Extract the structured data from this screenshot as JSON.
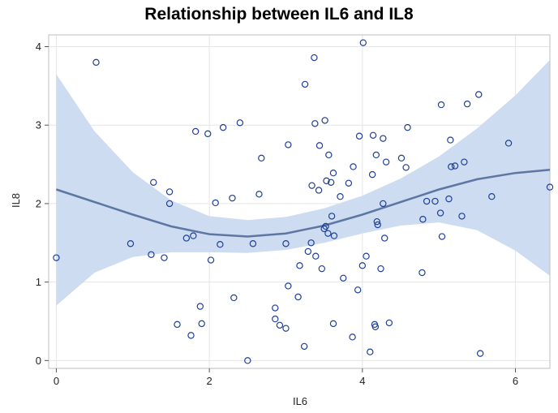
{
  "chart_data": {
    "type": "scatter",
    "title": "Relationship between IL6 and IL8",
    "xlabel": "IL6",
    "ylabel": "IL8",
    "xlim": [
      -0.1,
      6.45
    ],
    "ylim": [
      -0.1,
      4.15
    ],
    "x_ticks": [
      0,
      2,
      4,
      6
    ],
    "y_ticks": [
      0,
      1,
      2,
      3,
      4
    ],
    "grid": true,
    "legend": "none",
    "colors": {
      "points": "#1f3f99",
      "fit_line": "#5e76a3",
      "band": "#cddcf0",
      "grid": "#e6e6e6",
      "frame": "#bfbfbf"
    },
    "points": [
      {
        "x": 0.0,
        "y": 1.31
      },
      {
        "x": 0.52,
        "y": 3.8
      },
      {
        "x": 0.97,
        "y": 1.49
      },
      {
        "x": 1.24,
        "y": 1.35
      },
      {
        "x": 1.27,
        "y": 2.27
      },
      {
        "x": 1.41,
        "y": 1.31
      },
      {
        "x": 1.48,
        "y": 2.15
      },
      {
        "x": 1.48,
        "y": 2.0
      },
      {
        "x": 1.58,
        "y": 0.46
      },
      {
        "x": 1.7,
        "y": 1.56
      },
      {
        "x": 1.76,
        "y": 0.32
      },
      {
        "x": 1.79,
        "y": 1.59
      },
      {
        "x": 1.82,
        "y": 2.92
      },
      {
        "x": 1.88,
        "y": 0.69
      },
      {
        "x": 1.9,
        "y": 0.47
      },
      {
        "x": 1.98,
        "y": 2.89
      },
      {
        "x": 2.02,
        "y": 1.28
      },
      {
        "x": 2.08,
        "y": 2.01
      },
      {
        "x": 2.14,
        "y": 1.48
      },
      {
        "x": 2.18,
        "y": 2.97
      },
      {
        "x": 2.3,
        "y": 2.07
      },
      {
        "x": 2.32,
        "y": 0.8
      },
      {
        "x": 2.4,
        "y": 3.03
      },
      {
        "x": 2.5,
        "y": 0.0
      },
      {
        "x": 2.57,
        "y": 1.49
      },
      {
        "x": 2.65,
        "y": 2.12
      },
      {
        "x": 2.68,
        "y": 2.58
      },
      {
        "x": 2.86,
        "y": 0.53
      },
      {
        "x": 2.86,
        "y": 0.67
      },
      {
        "x": 2.92,
        "y": 0.45
      },
      {
        "x": 3.0,
        "y": 0.41
      },
      {
        "x": 3.0,
        "y": 1.49
      },
      {
        "x": 3.03,
        "y": 2.75
      },
      {
        "x": 3.03,
        "y": 0.95
      },
      {
        "x": 3.16,
        "y": 0.81
      },
      {
        "x": 3.18,
        "y": 1.21
      },
      {
        "x": 3.24,
        "y": 0.18
      },
      {
        "x": 3.25,
        "y": 3.52
      },
      {
        "x": 3.29,
        "y": 1.39
      },
      {
        "x": 3.33,
        "y": 1.5
      },
      {
        "x": 3.34,
        "y": 2.23
      },
      {
        "x": 3.37,
        "y": 3.86
      },
      {
        "x": 3.38,
        "y": 3.02
      },
      {
        "x": 3.39,
        "y": 1.33
      },
      {
        "x": 3.43,
        "y": 2.17
      },
      {
        "x": 3.44,
        "y": 2.74
      },
      {
        "x": 3.47,
        "y": 1.17
      },
      {
        "x": 3.5,
        "y": 1.68
      },
      {
        "x": 3.51,
        "y": 3.06
      },
      {
        "x": 3.52,
        "y": 1.71
      },
      {
        "x": 3.53,
        "y": 2.29
      },
      {
        "x": 3.55,
        "y": 1.62
      },
      {
        "x": 3.56,
        "y": 2.62
      },
      {
        "x": 3.59,
        "y": 2.27
      },
      {
        "x": 3.6,
        "y": 1.84
      },
      {
        "x": 3.62,
        "y": 0.47
      },
      {
        "x": 3.62,
        "y": 2.39
      },
      {
        "x": 3.63,
        "y": 1.59
      },
      {
        "x": 3.71,
        "y": 2.09
      },
      {
        "x": 3.75,
        "y": 1.05
      },
      {
        "x": 3.82,
        "y": 2.26
      },
      {
        "x": 3.87,
        "y": 0.3
      },
      {
        "x": 3.88,
        "y": 2.47
      },
      {
        "x": 3.94,
        "y": 0.9
      },
      {
        "x": 3.96,
        "y": 2.86
      },
      {
        "x": 4.0,
        "y": 1.21
      },
      {
        "x": 4.01,
        "y": 4.05
      },
      {
        "x": 4.05,
        "y": 1.33
      },
      {
        "x": 4.1,
        "y": 0.11
      },
      {
        "x": 4.13,
        "y": 2.37
      },
      {
        "x": 4.14,
        "y": 2.87
      },
      {
        "x": 4.16,
        "y": 0.46
      },
      {
        "x": 4.17,
        "y": 0.43
      },
      {
        "x": 4.18,
        "y": 2.62
      },
      {
        "x": 4.19,
        "y": 1.77
      },
      {
        "x": 4.2,
        "y": 1.73
      },
      {
        "x": 4.24,
        "y": 1.17
      },
      {
        "x": 4.27,
        "y": 2.0
      },
      {
        "x": 4.27,
        "y": 2.83
      },
      {
        "x": 4.29,
        "y": 1.56
      },
      {
        "x": 4.31,
        "y": 2.53
      },
      {
        "x": 4.35,
        "y": 0.48
      },
      {
        "x": 4.51,
        "y": 2.58
      },
      {
        "x": 4.57,
        "y": 2.46
      },
      {
        "x": 4.59,
        "y": 2.97
      },
      {
        "x": 4.78,
        "y": 1.12
      },
      {
        "x": 4.79,
        "y": 1.8
      },
      {
        "x": 4.84,
        "y": 2.03
      },
      {
        "x": 4.95,
        "y": 2.03
      },
      {
        "x": 5.02,
        "y": 1.88
      },
      {
        "x": 5.03,
        "y": 3.26
      },
      {
        "x": 5.04,
        "y": 1.58
      },
      {
        "x": 5.13,
        "y": 2.06
      },
      {
        "x": 5.15,
        "y": 2.81
      },
      {
        "x": 5.16,
        "y": 2.47
      },
      {
        "x": 5.21,
        "y": 2.48
      },
      {
        "x": 5.3,
        "y": 1.84
      },
      {
        "x": 5.33,
        "y": 2.53
      },
      {
        "x": 5.37,
        "y": 3.27
      },
      {
        "x": 5.52,
        "y": 3.39
      },
      {
        "x": 5.54,
        "y": 0.09
      },
      {
        "x": 5.69,
        "y": 2.09
      },
      {
        "x": 5.91,
        "y": 2.77
      },
      {
        "x": 6.45,
        "y": 2.21
      }
    ],
    "fit_line": [
      {
        "x": 0.0,
        "y": 2.18
      },
      {
        "x": 0.5,
        "y": 2.02
      },
      {
        "x": 1.0,
        "y": 1.86
      },
      {
        "x": 1.5,
        "y": 1.71
      },
      {
        "x": 2.0,
        "y": 1.61
      },
      {
        "x": 2.5,
        "y": 1.58
      },
      {
        "x": 3.0,
        "y": 1.62
      },
      {
        "x": 3.5,
        "y": 1.72
      },
      {
        "x": 4.0,
        "y": 1.86
      },
      {
        "x": 4.5,
        "y": 2.02
      },
      {
        "x": 5.0,
        "y": 2.18
      },
      {
        "x": 5.5,
        "y": 2.31
      },
      {
        "x": 6.0,
        "y": 2.39
      },
      {
        "x": 6.45,
        "y": 2.43
      }
    ],
    "confidence_band": [
      {
        "x": 0.0,
        "lower": 0.7,
        "upper": 3.65
      },
      {
        "x": 0.5,
        "lower": 1.12,
        "upper": 2.92
      },
      {
        "x": 1.0,
        "lower": 1.32,
        "upper": 2.4
      },
      {
        "x": 1.5,
        "lower": 1.38,
        "upper": 2.04
      },
      {
        "x": 2.0,
        "lower": 1.38,
        "upper": 1.84
      },
      {
        "x": 2.5,
        "lower": 1.37,
        "upper": 1.79
      },
      {
        "x": 3.0,
        "lower": 1.41,
        "upper": 1.83
      },
      {
        "x": 3.5,
        "lower": 1.5,
        "upper": 1.94
      },
      {
        "x": 4.0,
        "lower": 1.62,
        "upper": 2.1
      },
      {
        "x": 4.5,
        "lower": 1.72,
        "upper": 2.32
      },
      {
        "x": 5.0,
        "lower": 1.76,
        "upper": 2.6
      },
      {
        "x": 5.5,
        "lower": 1.66,
        "upper": 2.96
      },
      {
        "x": 6.0,
        "lower": 1.4,
        "upper": 3.38
      },
      {
        "x": 6.45,
        "lower": 1.08,
        "upper": 3.83
      }
    ]
  }
}
